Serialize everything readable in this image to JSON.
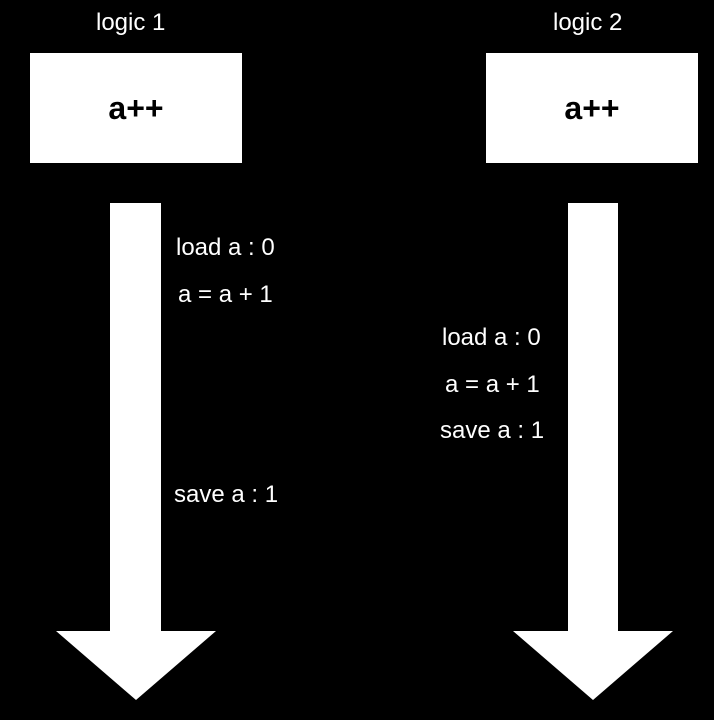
{
  "colors": {
    "background": "#000000",
    "foreground": "#ffffff"
  },
  "lanes": [
    {
      "title": "logic 1",
      "operation": "a++",
      "steps": [
        "load a : 0",
        "a = a + 1",
        "save a : 1"
      ]
    },
    {
      "title": "logic 2",
      "operation": "a++",
      "steps": [
        "load a : 0",
        "a = a + 1",
        "save a : 1"
      ]
    }
  ]
}
